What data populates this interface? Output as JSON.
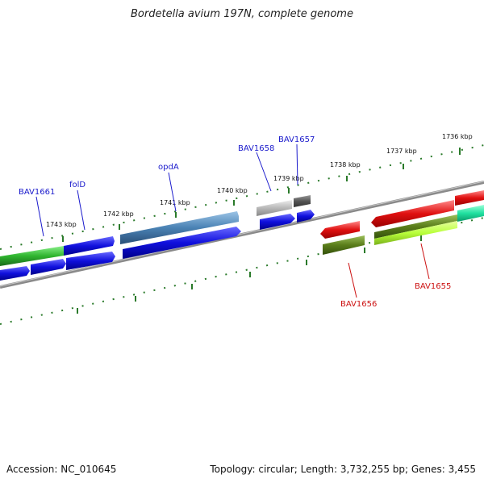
{
  "title": "Bordetella avium 197N, complete genome",
  "footer": {
    "accession": "Accession: NC_010645",
    "summary": "Topology: circular; Length: 3,732,255 bp; Genes: 3,455"
  },
  "ticks": [
    "1743 kbp",
    "1742 kbp",
    "1741 kbp",
    "1740 kbp",
    "1739 kbp",
    "1738 kbp",
    "1737 kbp",
    "1736 kbp"
  ],
  "genes": {
    "forward": [
      "BAV1661",
      "folD",
      "opdA",
      "BAV1658",
      "BAV1657"
    ],
    "reverse": [
      "BAV1656",
      "BAV1655"
    ]
  },
  "colors": {
    "forward_label": "#1a1acc",
    "reverse_label": "#cc1111",
    "tick": "#2a7a2a",
    "blue": "#1010dd",
    "green": "#2fb52f",
    "steel": "#4a82b4",
    "light_gray": "#b8b8b8",
    "dark_gray": "#555555",
    "red": "#e01010",
    "olive": "#5a7d1a",
    "lime": "#b8ff3a",
    "teal": "#20e0a0"
  }
}
